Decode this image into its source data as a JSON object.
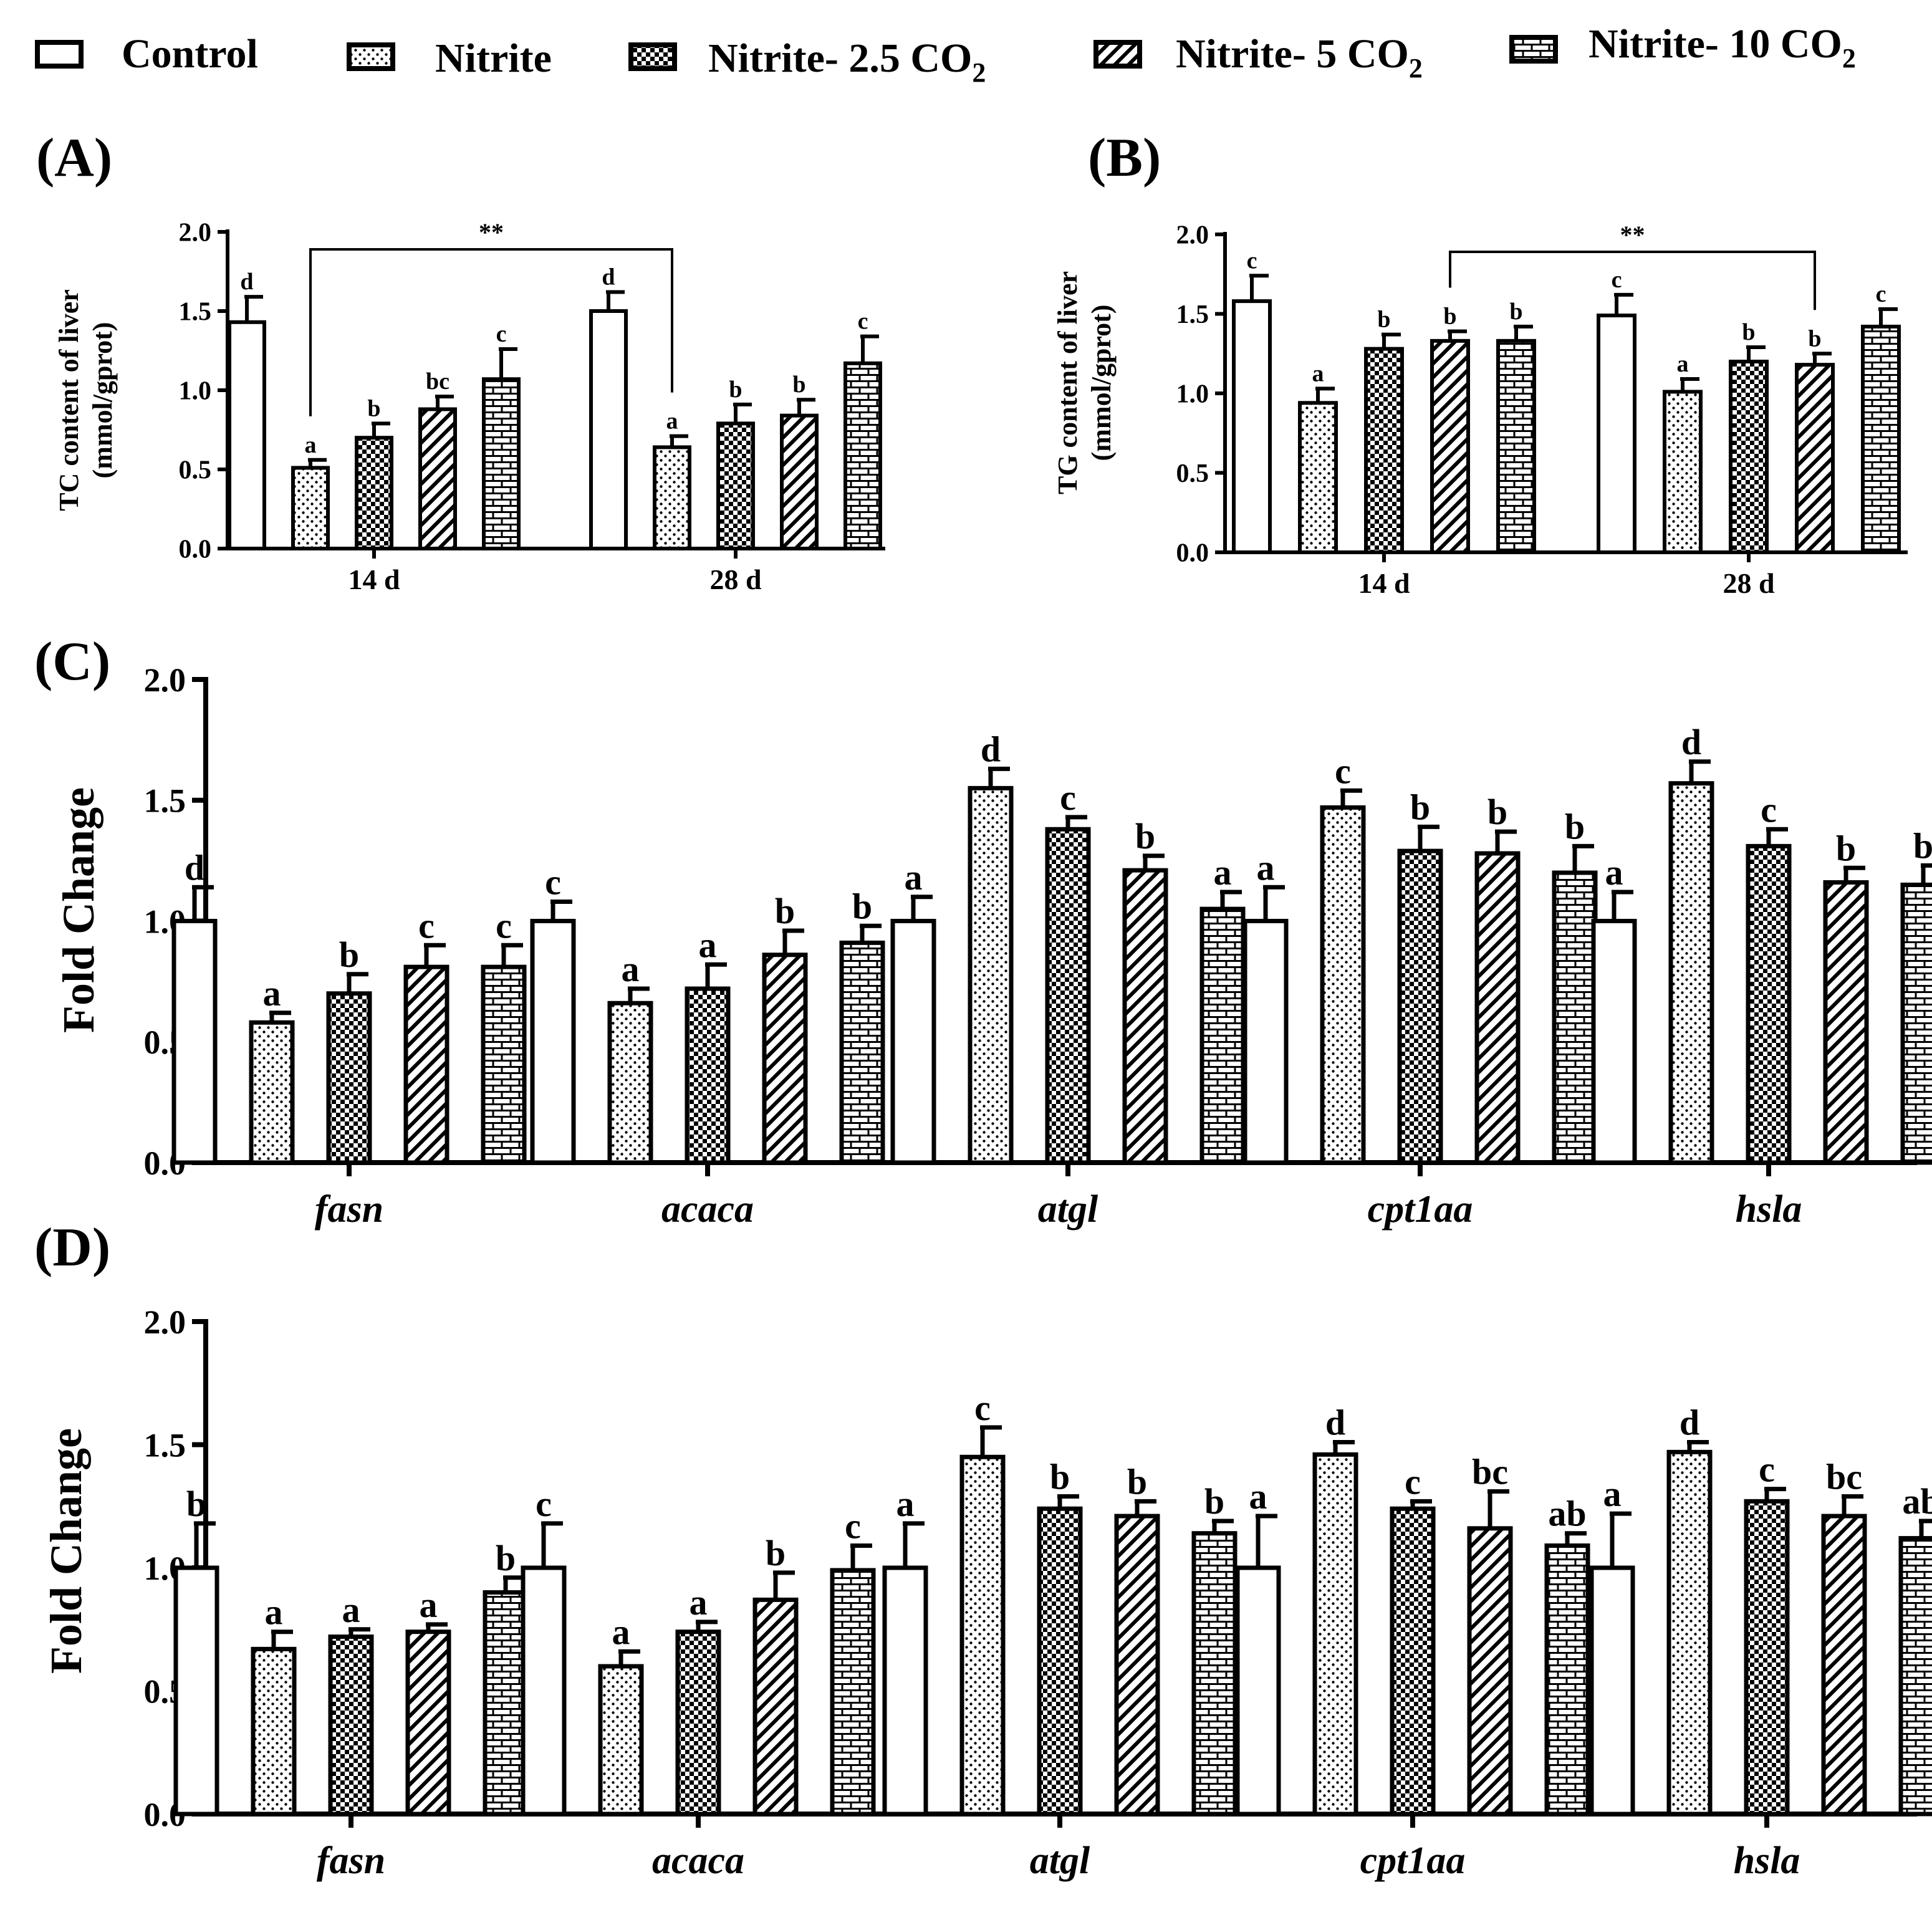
{
  "legend": {
    "items": [
      {
        "label": "Control",
        "sub": "",
        "pattern": "plain"
      },
      {
        "label": "Nitrite",
        "sub": "",
        "pattern": "dots"
      },
      {
        "label": "Nitrite- 2.5 CO",
        "sub": "2",
        "pattern": "checker"
      },
      {
        "label": "Nitrite- 5 CO",
        "sub": "2",
        "pattern": "hatch"
      },
      {
        "label": "Nitrite- 10 CO",
        "sub": "2",
        "pattern": "brick"
      }
    ]
  },
  "colors": {
    "ink": "#000000",
    "fill": "#ffffff"
  },
  "chart_data": [
    {
      "id": "A",
      "panel_label": "(A)",
      "type": "bar",
      "ylabel": [
        "TC content of liver",
        "(mmol/gprot)"
      ],
      "ylim": [
        0,
        2.0
      ],
      "yticks": [
        "0.0",
        "0.5",
        "1.0",
        "1.5",
        "2.0"
      ],
      "categories": [
        "14 d",
        "28 d"
      ],
      "series_names": [
        "Control",
        "Nitrite",
        "Nitrite- 2.5 CO2",
        "Nitrite- 5 CO2",
        "Nitrite- 10 CO2"
      ],
      "groups": [
        {
          "values": [
            1.43,
            0.51,
            0.7,
            0.88,
            1.07
          ],
          "errors": [
            0.16,
            0.05,
            0.09,
            0.08,
            0.19
          ],
          "letters": [
            "d",
            "a",
            "b",
            "bc",
            "c"
          ]
        },
        {
          "values": [
            1.5,
            0.64,
            0.79,
            0.84,
            1.17
          ],
          "errors": [
            0.12,
            0.07,
            0.12,
            0.1,
            0.17
          ],
          "letters": [
            "d",
            "a",
            "b",
            "b",
            "c"
          ]
        }
      ],
      "bracket": {
        "label": "**",
        "from": [
          0,
          1
        ],
        "to": [
          1,
          1
        ]
      }
    },
    {
      "id": "B",
      "panel_label": "(B)",
      "type": "bar",
      "ylabel": [
        "TG content of liver",
        "(mmol/gprot)"
      ],
      "ylim": [
        0,
        2.0
      ],
      "yticks": [
        "0.0",
        "0.5",
        "1.0",
        "1.5",
        "2.0"
      ],
      "categories": [
        "14 d",
        "28 d"
      ],
      "series_names": [
        "Control",
        "Nitrite",
        "Nitrite- 2.5 CO2",
        "Nitrite- 5 CO2",
        "Nitrite- 10 CO2"
      ],
      "groups": [
        {
          "values": [
            1.58,
            0.94,
            1.28,
            1.33,
            1.33
          ],
          "errors": [
            0.16,
            0.09,
            0.09,
            0.06,
            0.09
          ],
          "letters": [
            "c",
            "a",
            "b",
            "b",
            "b"
          ]
        },
        {
          "values": [
            1.49,
            1.01,
            1.2,
            1.18,
            1.42
          ],
          "errors": [
            0.13,
            0.08,
            0.09,
            0.07,
            0.11
          ],
          "letters": [
            "c",
            "a",
            "b",
            "b",
            "c"
          ]
        }
      ],
      "bracket": {
        "label": "**",
        "from": [
          0,
          3
        ],
        "to": [
          1,
          3
        ]
      }
    },
    {
      "id": "C",
      "panel_label": "(C)",
      "type": "bar",
      "ylabel": [
        "Fold Change"
      ],
      "ylim": [
        0,
        2.0
      ],
      "yticks": [
        "0.0",
        "0.5",
        "1.0",
        "1.5",
        "2.0"
      ],
      "categories": [
        "fasn",
        "acaca",
        "atgl",
        "cpt1aa",
        "hsla"
      ],
      "series_names": [
        "Control",
        "Nitrite",
        "Nitrite- 2.5 CO2",
        "Nitrite- 5 CO2",
        "Nitrite- 10 CO2"
      ],
      "groups": [
        {
          "values": [
            1.0,
            0.58,
            0.7,
            0.81,
            0.81
          ],
          "errors": [
            0.14,
            0.04,
            0.08,
            0.09,
            0.09
          ],
          "letters": [
            "d",
            "a",
            "b",
            "c",
            "c"
          ]
        },
        {
          "values": [
            1.0,
            0.66,
            0.72,
            0.86,
            0.91
          ],
          "errors": [
            0.08,
            0.06,
            0.1,
            0.1,
            0.07
          ],
          "letters": [
            "c",
            "a",
            "a",
            "b",
            "b"
          ]
        },
        {
          "values": [
            1.0,
            1.55,
            1.38,
            1.21,
            1.05
          ],
          "errors": [
            0.1,
            0.08,
            0.05,
            0.06,
            0.07
          ],
          "letters": [
            "a",
            "d",
            "c",
            "b",
            "a"
          ]
        },
        {
          "values": [
            1.0,
            1.47,
            1.29,
            1.28,
            1.2
          ],
          "errors": [
            0.14,
            0.07,
            0.1,
            0.09,
            0.11
          ],
          "letters": [
            "a",
            "c",
            "b",
            "b",
            "b"
          ]
        },
        {
          "values": [
            1.0,
            1.57,
            1.31,
            1.16,
            1.15
          ],
          "errors": [
            0.12,
            0.09,
            0.07,
            0.06,
            0.08
          ],
          "letters": [
            "a",
            "d",
            "c",
            "b",
            "b"
          ]
        }
      ]
    },
    {
      "id": "D",
      "panel_label": "(D)",
      "type": "bar",
      "ylabel": [
        "Fold Change"
      ],
      "ylim": [
        0,
        2.0
      ],
      "yticks": [
        "0.0",
        "0.5",
        "1.0",
        "1.5",
        "2.0"
      ],
      "categories": [
        "fasn",
        "acaca",
        "atgl",
        "cpt1aa",
        "hsla"
      ],
      "series_names": [
        "Control",
        "Nitrite",
        "Nitrite- 2.5 CO2",
        "Nitrite- 5 CO2",
        "Nitrite- 10 CO2"
      ],
      "groups": [
        {
          "values": [
            1.0,
            0.67,
            0.72,
            0.74,
            0.9
          ],
          "errors": [
            0.18,
            0.07,
            0.03,
            0.03,
            0.06
          ],
          "letters": [
            "b",
            "a",
            "a",
            "a",
            "b"
          ]
        },
        {
          "values": [
            1.0,
            0.6,
            0.74,
            0.87,
            0.99
          ],
          "errors": [
            0.18,
            0.06,
            0.04,
            0.11,
            0.1
          ],
          "letters": [
            "c",
            "a",
            "a",
            "b",
            "c"
          ]
        },
        {
          "values": [
            1.0,
            1.45,
            1.24,
            1.21,
            1.14
          ],
          "errors": [
            0.18,
            0.12,
            0.05,
            0.06,
            0.05
          ],
          "letters": [
            "a",
            "c",
            "b",
            "b",
            "b"
          ]
        },
        {
          "values": [
            1.0,
            1.46,
            1.24,
            1.16,
            1.09
          ],
          "errors": [
            0.21,
            0.05,
            0.03,
            0.15,
            0.05
          ],
          "letters": [
            "a",
            "d",
            "c",
            "bc",
            "ab"
          ]
        },
        {
          "values": [
            1.0,
            1.47,
            1.27,
            1.21,
            1.12
          ],
          "errors": [
            0.22,
            0.04,
            0.05,
            0.08,
            0.07
          ],
          "letters": [
            "a",
            "d",
            "c",
            "bc",
            "ab"
          ]
        }
      ]
    }
  ]
}
